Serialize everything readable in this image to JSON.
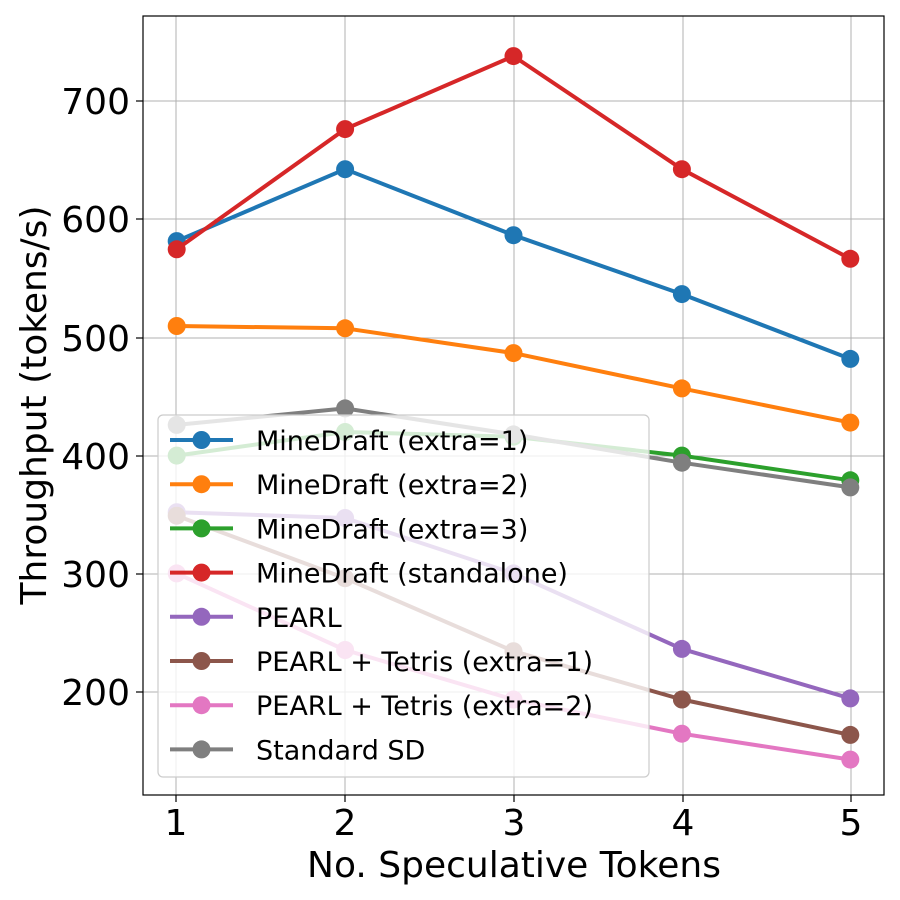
{
  "chart_data": {
    "type": "line",
    "xlabel": "No. Speculative Tokens",
    "ylabel": "Throughput (tokens/s)",
    "x": [
      1,
      2,
      3,
      4,
      5
    ],
    "x_ticks": [
      "1",
      "2",
      "3",
      "4",
      "5"
    ],
    "y_ticks": [
      "200",
      "300",
      "400",
      "500",
      "600",
      "700"
    ],
    "xlim": [
      0.8,
      5.2
    ],
    "ylim": [
      114,
      775
    ],
    "grid": true,
    "legend_position": "lower-left",
    "series": [
      {
        "name": "MineDraft (extra=1)",
        "color": "#1f77b4",
        "values": [
          584,
          645,
          589,
          539,
          484
        ]
      },
      {
        "name": "MineDraft (extra=2)",
        "color": "#ff7f0e",
        "values": [
          512,
          510,
          489,
          459,
          430
        ]
      },
      {
        "name": "MineDraft (extra=3)",
        "color": "#2ca02c",
        "values": [
          402,
          422,
          418,
          402,
          381
        ]
      },
      {
        "name": "MineDraft (standalone)",
        "color": "#d62728",
        "values": [
          577,
          679,
          741,
          645,
          569
        ]
      },
      {
        "name": "PEARL",
        "color": "#9467bd",
        "values": [
          354,
          349,
          302,
          238,
          196
        ]
      },
      {
        "name": "PEARL + Tetris (extra=1)",
        "color": "#8c564b",
        "values": [
          351,
          298,
          236,
          195,
          165
        ]
      },
      {
        "name": "PEARL + Tetris (extra=2)",
        "color": "#e377c2",
        "values": [
          302,
          237,
          195,
          166,
          144
        ]
      },
      {
        "name": "Standard SD",
        "color": "#7f7f7f",
        "values": [
          428,
          442,
          420,
          396,
          375
        ]
      }
    ]
  }
}
